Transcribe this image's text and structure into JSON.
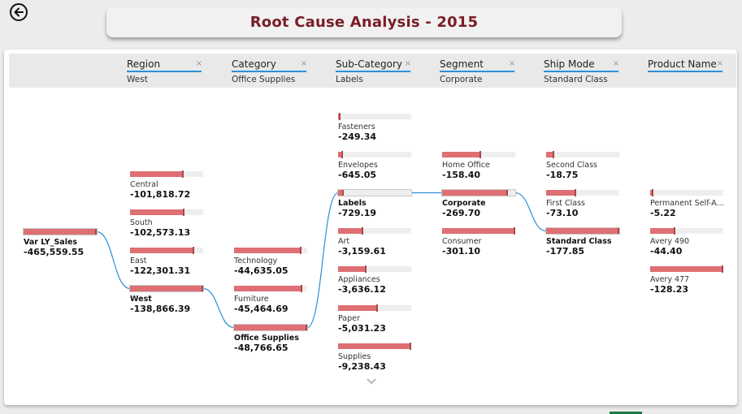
{
  "page": {
    "title": "Root Cause Analysis - 2015",
    "back_icon": "arrow-left-circle-icon"
  },
  "colors": {
    "title": "#7a1d27",
    "bar": "#de6f73",
    "bar_cap": "#a8484c",
    "track": "#eeeeee",
    "connector": "#2d8fd8",
    "header_underline": "#2d8fd8"
  },
  "levels": [
    {
      "name": "Region",
      "value": "West"
    },
    {
      "name": "Category",
      "value": "Office Supplies"
    },
    {
      "name": "Sub-Category",
      "value": "Labels"
    },
    {
      "name": "Segment",
      "value": "Corporate"
    },
    {
      "name": "Ship Mode",
      "value": "Standard Class"
    },
    {
      "name": "Product Name",
      "value": ""
    }
  ],
  "close_glyph": "×",
  "chart_data": {
    "type": "decomposition-tree",
    "measure": "Var LY_Sales",
    "root": {
      "label": "Var LY_Sales",
      "value": "-465,559.55"
    },
    "columns": [
      {
        "level": "Region",
        "selected": "West",
        "nodes": [
          {
            "label": "Central",
            "value": "-101,818.72",
            "fill_fraction": 0.73
          },
          {
            "label": "South",
            "value": "-102,573.13",
            "fill_fraction": 0.74
          },
          {
            "label": "East",
            "value": "-122,301.31",
            "fill_fraction": 0.88
          },
          {
            "label": "West",
            "value": "-138,866.39",
            "fill_fraction": 1.0
          }
        ]
      },
      {
        "level": "Category",
        "selected": "Office Supplies",
        "nodes": [
          {
            "label": "Technology",
            "value": "-44,635.05",
            "fill_fraction": 0.92
          },
          {
            "label": "Furniture",
            "value": "-45,464.69",
            "fill_fraction": 0.93
          },
          {
            "label": "Office Supplies",
            "value": "-48,766.65",
            "fill_fraction": 1.0
          }
        ]
      },
      {
        "level": "Sub-Category",
        "selected": "Labels",
        "nodes": [
          {
            "label": "Fasteners",
            "value": "-249.34",
            "fill_fraction": 0.03
          },
          {
            "label": "Envelopes",
            "value": "-645.05",
            "fill_fraction": 0.07
          },
          {
            "label": "Labels",
            "value": "-729.19",
            "fill_fraction": 0.08
          },
          {
            "label": "Art",
            "value": "-3,159.61",
            "fill_fraction": 0.34
          },
          {
            "label": "Appliances",
            "value": "-3,636.12",
            "fill_fraction": 0.39
          },
          {
            "label": "Paper",
            "value": "-5,031.23",
            "fill_fraction": 0.54
          },
          {
            "label": "Supplies",
            "value": "-9,238.43",
            "fill_fraction": 1.0
          }
        ]
      },
      {
        "level": "Segment",
        "selected": "Corporate",
        "nodes": [
          {
            "label": "Home Office",
            "value": "-158.40",
            "fill_fraction": 0.53
          },
          {
            "label": "Corporate",
            "value": "-269.70",
            "fill_fraction": 0.9
          },
          {
            "label": "Consumer",
            "value": "-301.10",
            "fill_fraction": 1.0
          }
        ]
      },
      {
        "level": "Ship Mode",
        "selected": "Standard Class",
        "nodes": [
          {
            "label": "Second Class",
            "value": "-18.75",
            "fill_fraction": 0.11
          },
          {
            "label": "First Class",
            "value": "-73.10",
            "fill_fraction": 0.41
          },
          {
            "label": "Standard Class",
            "value": "-177.85",
            "fill_fraction": 1.0
          }
        ]
      },
      {
        "level": "Product Name",
        "selected": "",
        "nodes": [
          {
            "label": "Permanent Self-A...",
            "value": "-5.22",
            "fill_fraction": 0.04
          },
          {
            "label": "Avery 490",
            "value": "-44.40",
            "fill_fraction": 0.35
          },
          {
            "label": "Avery 477",
            "value": "-128.23",
            "fill_fraction": 1.0
          }
        ]
      }
    ]
  }
}
